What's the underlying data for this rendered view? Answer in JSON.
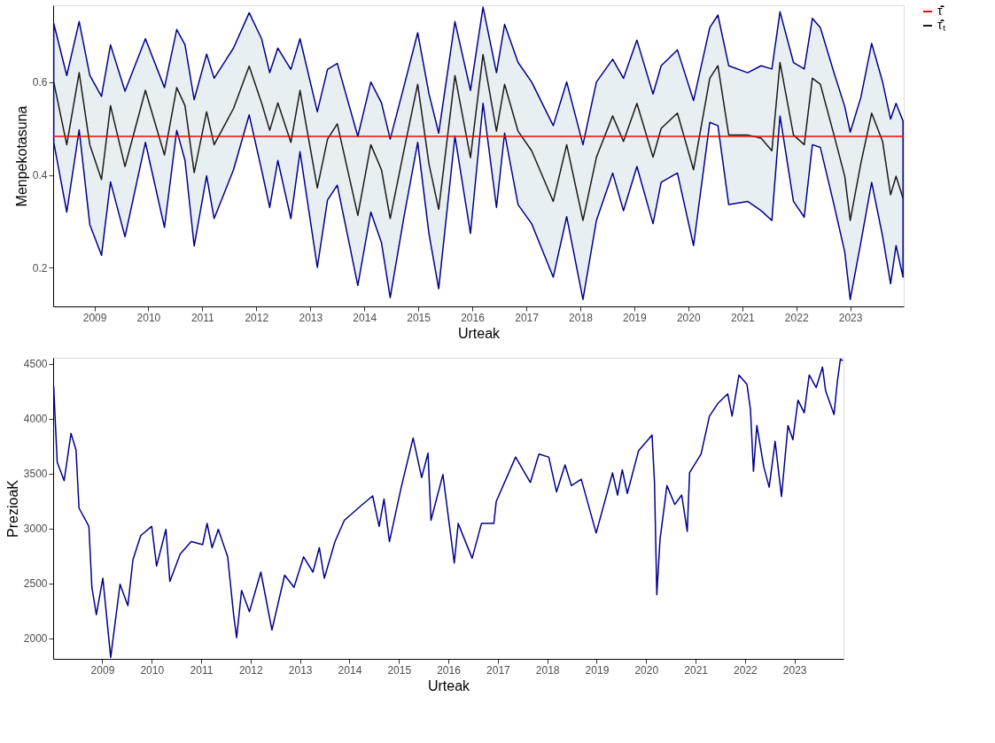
{
  "chart_data": [
    {
      "type": "line",
      "xlabel": "Urteak",
      "ylabel": "Menpekotasuna",
      "grid": false,
      "legend": "right",
      "xlim": [
        "2008-03-28",
        "2023-12-29"
      ],
      "xticks": [
        "2009",
        "2010",
        "2011",
        "2012",
        "2013",
        "2014",
        "2015",
        "2016",
        "2017",
        "2018",
        "2019",
        "2020",
        "2021",
        "2022",
        "2023"
      ],
      "ylim": [
        0.117,
        0.765
      ],
      "yticks": [
        0.2,
        0.4,
        0.6
      ],
      "x": [
        "2008-04-01",
        "2008-06-28",
        "2008-09-20",
        "2008-12-01",
        "2009-02-18",
        "2009-04-20",
        "2009-07-27",
        "2009-12-12",
        "2010-04-20",
        "2010-07-12",
        "2010-09-06",
        "2010-11-07",
        "2011-01-30",
        "2011-03-22",
        "2011-07-31",
        "2011-11-14",
        "2012-02-06",
        "2012-04-01",
        "2012-05-26",
        "2012-08-22",
        "2012-10-23",
        "2013-02-17",
        "2013-04-27",
        "2013-07-02",
        "2013-11-18",
        "2014-02-14",
        "2014-04-27",
        "2014-06-25",
        "2014-09-24",
        "2014-12-28",
        "2015-03-14",
        "2015-05-19",
        "2015-09-06",
        "2015-12-20",
        "2016-03-14",
        "2016-06-13",
        "2016-08-07",
        "2016-11-06",
        "2017-02-06",
        "2017-07-02",
        "2017-10-01",
        "2018-01-19",
        "2018-04-20",
        "2018-08-08",
        "2018-10-20",
        "2019-01-19",
        "2019-05-08",
        "2019-07-02",
        "2019-10-20",
        "2020-02-06",
        "2020-05-26",
        "2020-07-20",
        "2020-10-01",
        "2021-02-06",
        "2021-05-08",
        "2021-07-20",
        "2021-09-13",
        "2021-12-13",
        "2022-02-24",
        "2022-04-20",
        "2022-06-13",
        "2022-09-13",
        "2022-11-25",
        "2023-01-01",
        "2023-03-14",
        "2023-05-26",
        "2023-08-08",
        "2023-10-01",
        "2023-11-07",
        "2023-12-24"
      ],
      "series": [
        {
          "name": "τ̂̄ₜ",
          "color": "#1a1a1a",
          "values": [
            0.6,
            0.465,
            0.62,
            0.465,
            0.39,
            0.549,
            0.418,
            0.582,
            0.443,
            0.588,
            0.549,
            0.405,
            0.536,
            0.465,
            0.543,
            0.634,
            0.555,
            0.496,
            0.555,
            0.47,
            0.582,
            0.372,
            0.477,
            0.51,
            0.313,
            0.465,
            0.411,
            0.306,
            0.45,
            0.595,
            0.424,
            0.326,
            0.614,
            0.437,
            0.659,
            0.494,
            0.595,
            0.494,
            0.452,
            0.343,
            0.465,
            0.302,
            0.438,
            0.527,
            0.472,
            0.554,
            0.438,
            0.5,
            0.533,
            0.411,
            0.608,
            0.635,
            0.486,
            0.486,
            0.479,
            0.452,
            0.642,
            0.486,
            0.465,
            0.608,
            0.595,
            0.486,
            0.397,
            0.302,
            0.425,
            0.533,
            0.472,
            0.357,
            0.397,
            0.35
          ],
          "upper": [
            0.726,
            0.614,
            0.73,
            0.614,
            0.569,
            0.68,
            0.58,
            0.693,
            0.588,
            0.713,
            0.68,
            0.562,
            0.66,
            0.608,
            0.673,
            0.749,
            0.693,
            0.62,
            0.673,
            0.627,
            0.693,
            0.536,
            0.627,
            0.64,
            0.483,
            0.6,
            0.555,
            0.477,
            0.588,
            0.706,
            0.575,
            0.49,
            0.73,
            0.582,
            0.761,
            0.62,
            0.724,
            0.642,
            0.6,
            0.506,
            0.6,
            0.465,
            0.6,
            0.649,
            0.608,
            0.69,
            0.574,
            0.635,
            0.669,
            0.56,
            0.717,
            0.744,
            0.635,
            0.62,
            0.635,
            0.628,
            0.751,
            0.642,
            0.628,
            0.737,
            0.717,
            0.62,
            0.547,
            0.492,
            0.567,
            0.683,
            0.6,
            0.52,
            0.554,
            0.516
          ],
          "lower": [
            0.47,
            0.32,
            0.497,
            0.293,
            0.227,
            0.385,
            0.267,
            0.47,
            0.287,
            0.496,
            0.431,
            0.247,
            0.398,
            0.306,
            0.411,
            0.529,
            0.411,
            0.33,
            0.431,
            0.306,
            0.45,
            0.201,
            0.346,
            0.378,
            0.162,
            0.32,
            0.254,
            0.136,
            0.306,
            0.47,
            0.274,
            0.155,
            0.483,
            0.274,
            0.554,
            0.33,
            0.49,
            0.336,
            0.295,
            0.18,
            0.31,
            0.132,
            0.302,
            0.404,
            0.323,
            0.418,
            0.295,
            0.384,
            0.404,
            0.248,
            0.513,
            0.506,
            0.336,
            0.343,
            0.323,
            0.302,
            0.527,
            0.343,
            0.309,
            0.465,
            0.459,
            0.336,
            0.234,
            0.132,
            0.255,
            0.384,
            0.268,
            0.166,
            0.248,
            0.18
          ]
        }
      ],
      "ref_lines": [
        {
          "axis": "y",
          "value": 0.483,
          "label": "τ̂̄",
          "color": "#ff0000"
        }
      ]
    },
    {
      "type": "line",
      "xlabel": "Urteak",
      "ylabel": "PrezioaK",
      "grid": false,
      "xlim": [
        "2008-01-04",
        "2023-12-29"
      ],
      "xticks": [
        "2009",
        "2010",
        "2011",
        "2012",
        "2013",
        "2014",
        "2015",
        "2016",
        "2017",
        "2018",
        "2019",
        "2020",
        "2021",
        "2022",
        "2023"
      ],
      "ylim": [
        1812,
        4556
      ],
      "yticks": [
        2000,
        2500,
        3000,
        3500,
        4000,
        4500
      ],
      "x": [
        "2008-01-08",
        "2008-01-19",
        "2008-02-03",
        "2008-03-25",
        "2008-05-15",
        "2008-06-21",
        "2008-07-13",
        "2008-09-24",
        "2008-10-16",
        "2008-11-18",
        "2009-01-05",
        "2009-03-04",
        "2009-05-12",
        "2009-07-09",
        "2009-08-15",
        "2009-10-12",
        "2010-01-01",
        "2010-02-06",
        "2010-04-16",
        "2010-05-15",
        "2010-07-31",
        "2010-10-20",
        "2011-01-12",
        "2011-02-14",
        "2011-03-23",
        "2011-05-08",
        "2011-07-16",
        "2011-08-29",
        "2011-09-20",
        "2011-10-27",
        "2011-12-24",
        "2012-03-17",
        "2012-06-07",
        "2012-09-09",
        "2012-11-17",
        "2013-01-27",
        "2013-04-06",
        "2013-05-23",
        "2013-06-29",
        "2013-09-16",
        "2013-11-24",
        "2014-04-02",
        "2014-06-21",
        "2014-08-08",
        "2014-09-13",
        "2014-10-23",
        "2015-01-19",
        "2015-04-16",
        "2015-06-18",
        "2015-08-04",
        "2015-08-26",
        "2015-11-22",
        "2016-02-14",
        "2016-03-14",
        "2016-06-25",
        "2016-09-02",
        "2016-12-02",
        "2016-12-20",
        "2017-05-12",
        "2017-08-29",
        "2017-10-31",
        "2018-01-12",
        "2018-03-10",
        "2018-05-12",
        "2018-06-28",
        "2018-09-09",
        "2018-12-28",
        "2019-04-28",
        "2019-06-04",
        "2019-07-09",
        "2019-08-15",
        "2019-11-06",
        "2020-02-14",
        "2020-03-03",
        "2020-03-20",
        "2020-04-13",
        "2020-06-03",
        "2020-07-31",
        "2020-09-20",
        "2020-10-31",
        "2020-11-17",
        "2021-02-10",
        "2021-04-13",
        "2021-06-14",
        "2021-08-26",
        "2021-09-27",
        "2021-11-17",
        "2022-01-15",
        "2022-02-10",
        "2022-03-04",
        "2022-03-29",
        "2022-05-19",
        "2022-06-28",
        "2022-08-11",
        "2022-09-27",
        "2022-11-14",
        "2022-12-20",
        "2023-01-27",
        "2023-03-14",
        "2023-04-20",
        "2023-06-10",
        "2023-07-27",
        "2023-08-19",
        "2023-10-20",
        "2023-11-14",
        "2023-12-06",
        "2023-12-24"
      ],
      "series": [
        {
          "color": "#00008b",
          "values": [
            4297,
            3992,
            3603,
            3436,
            3867,
            3714,
            3186,
            3019,
            2464,
            2214,
            2547,
            1825,
            2492,
            2297,
            2714,
            2936,
            3019,
            2658,
            2992,
            2519,
            2769,
            2881,
            2853,
            3047,
            2825,
            2992,
            2742,
            2214,
            2005,
            2436,
            2242,
            2603,
            2075,
            2575,
            2464,
            2742,
            2603,
            2825,
            2547,
            2881,
            3075,
            3214,
            3297,
            3019,
            3269,
            2881,
            3381,
            3825,
            3464,
            3686,
            3075,
            3492,
            2686,
            3046,
            2729,
            3046,
            3046,
            3247,
            3651,
            3420,
            3679,
            3651,
            3334,
            3579,
            3391,
            3449,
            2959,
            3507,
            3305,
            3535,
            3319,
            3708,
            3852,
            3420,
            2398,
            2902,
            3391,
            3219,
            3305,
            2974,
            3507,
            3679,
            4025,
            4140,
            4227,
            4025,
            4399,
            4313,
            4083,
            3521,
            3939,
            3564,
            3377,
            3795,
            3291,
            3939,
            3809,
            4169,
            4054,
            4399,
            4284,
            4471,
            4255,
            4039,
            4342,
            4543,
            4529
          ]
        }
      ]
    }
  ]
}
